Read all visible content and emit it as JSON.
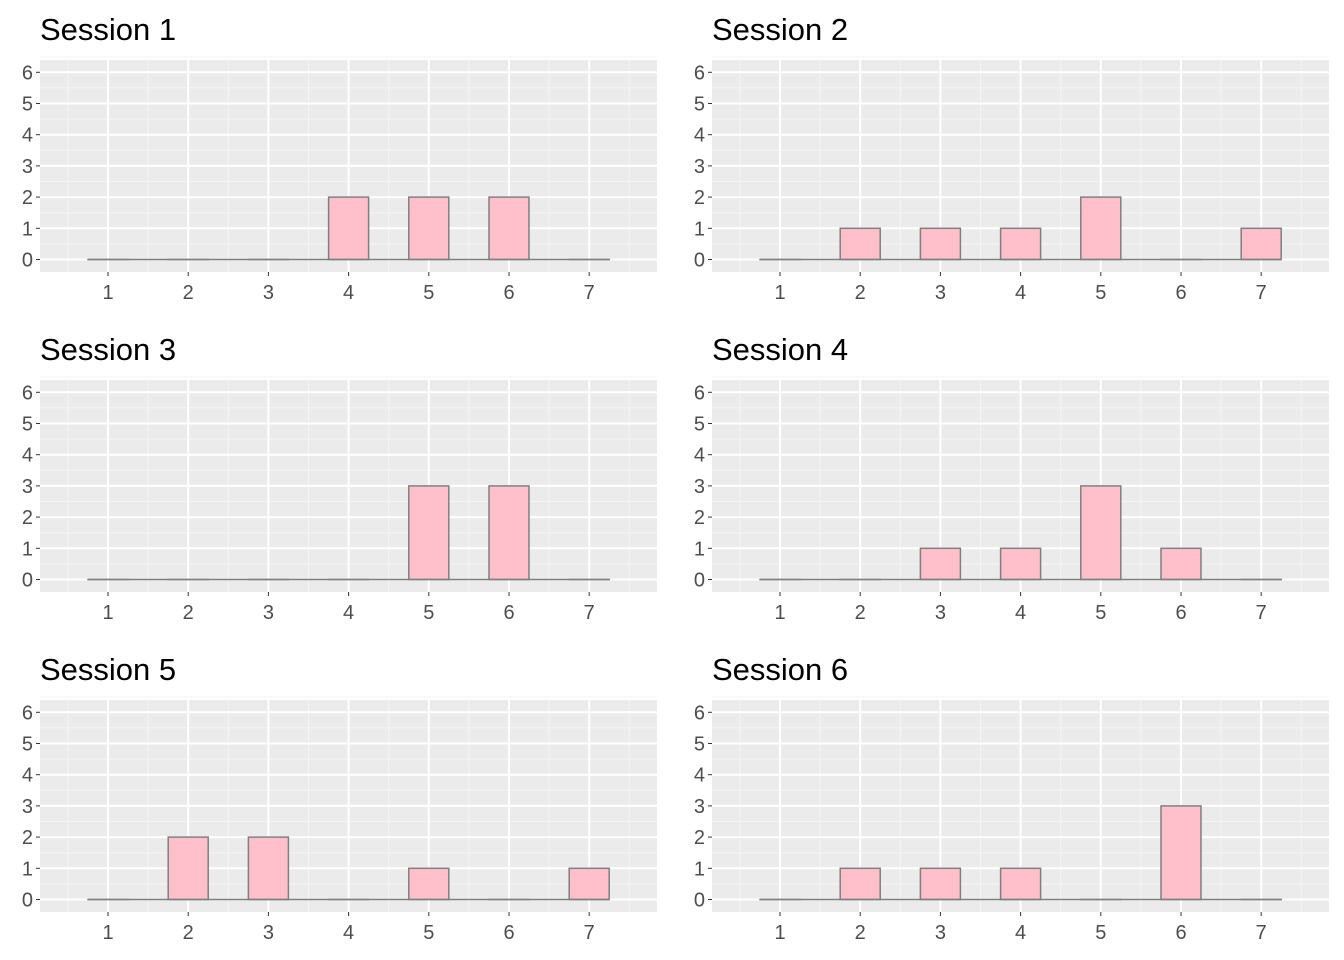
{
  "colors": {
    "panel_background": "#ebebeb",
    "grid_major": "#ffffff",
    "grid_minor": "#f5f5f5",
    "bar_fill": "#ffc0cb",
    "bar_outline": "#7f7f7f",
    "tick_text": "#4d4d4d",
    "title_text": "#000000"
  },
  "chart_data": [
    {
      "type": "bar",
      "title": "Session 1",
      "categories": [
        "1",
        "2",
        "3",
        "4",
        "5",
        "6",
        "7"
      ],
      "values": [
        0,
        0,
        0,
        2,
        2,
        2,
        0
      ],
      "xlabel": "",
      "ylabel": "",
      "ylim": [
        0,
        6
      ],
      "yticks": [
        "0",
        "1",
        "2",
        "3",
        "4",
        "5",
        "6"
      ],
      "grid": true,
      "legend": "none"
    },
    {
      "type": "bar",
      "title": "Session 2",
      "categories": [
        "1",
        "2",
        "3",
        "4",
        "5",
        "6",
        "7"
      ],
      "values": [
        0,
        1,
        1,
        1,
        2,
        0,
        1
      ],
      "xlabel": "",
      "ylabel": "",
      "ylim": [
        0,
        6
      ],
      "yticks": [
        "0",
        "1",
        "2",
        "3",
        "4",
        "5",
        "6"
      ],
      "grid": true,
      "legend": "none"
    },
    {
      "type": "bar",
      "title": "Session 3",
      "categories": [
        "1",
        "2",
        "3",
        "4",
        "5",
        "6",
        "7"
      ],
      "values": [
        0,
        0,
        0,
        0,
        3,
        3,
        0
      ],
      "xlabel": "",
      "ylabel": "",
      "ylim": [
        0,
        6
      ],
      "yticks": [
        "0",
        "1",
        "2",
        "3",
        "4",
        "5",
        "6"
      ],
      "grid": true,
      "legend": "none"
    },
    {
      "type": "bar",
      "title": "Session 4",
      "categories": [
        "1",
        "2",
        "3",
        "4",
        "5",
        "6",
        "7"
      ],
      "values": [
        0,
        0,
        1,
        1,
        3,
        1,
        0
      ],
      "xlabel": "",
      "ylabel": "",
      "ylim": [
        0,
        6
      ],
      "yticks": [
        "0",
        "1",
        "2",
        "3",
        "4",
        "5",
        "6"
      ],
      "grid": true,
      "legend": "none"
    },
    {
      "type": "bar",
      "title": "Session 5",
      "categories": [
        "1",
        "2",
        "3",
        "4",
        "5",
        "6",
        "7"
      ],
      "values": [
        0,
        2,
        2,
        0,
        1,
        0,
        1
      ],
      "xlabel": "",
      "ylabel": "",
      "ylim": [
        0,
        6
      ],
      "yticks": [
        "0",
        "1",
        "2",
        "3",
        "4",
        "5",
        "6"
      ],
      "grid": true,
      "legend": "none"
    },
    {
      "type": "bar",
      "title": "Session 6",
      "categories": [
        "1",
        "2",
        "3",
        "4",
        "5",
        "6",
        "7"
      ],
      "values": [
        0,
        1,
        1,
        1,
        0,
        3,
        0
      ],
      "xlabel": "",
      "ylabel": "",
      "ylim": [
        0,
        6
      ],
      "yticks": [
        "0",
        "1",
        "2",
        "3",
        "4",
        "5",
        "6"
      ],
      "grid": true,
      "legend": "none"
    }
  ]
}
